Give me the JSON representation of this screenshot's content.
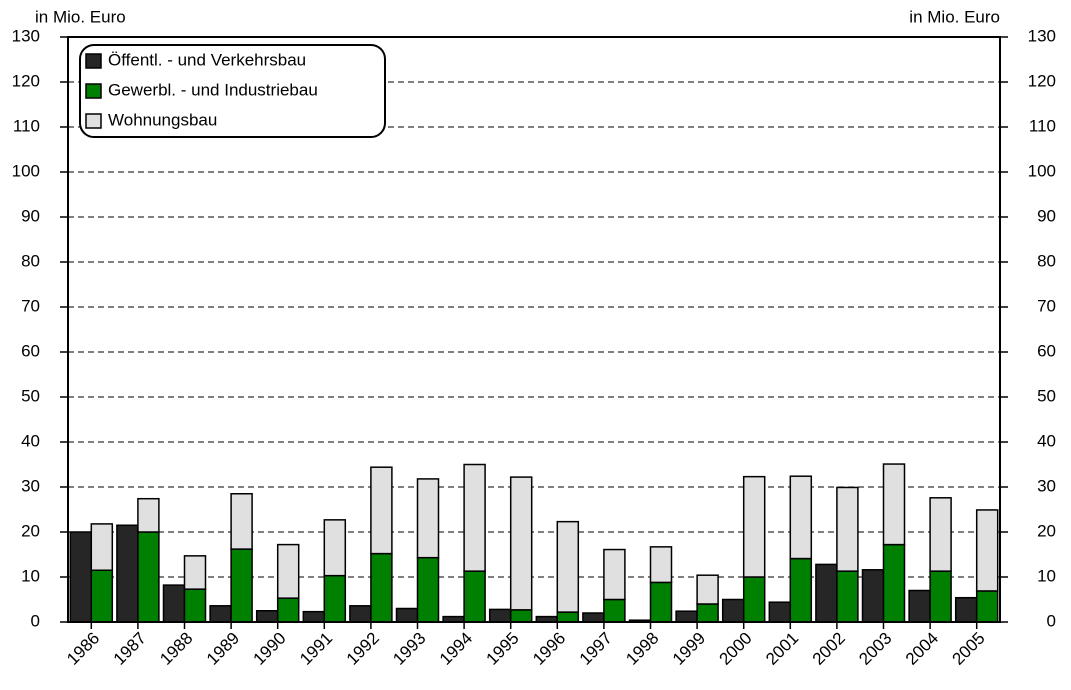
{
  "chart_data": {
    "type": "bar",
    "ylabel": "in Mio. Euro",
    "y2label": "in Mio. Euro",
    "categories": [
      "1986",
      "1987",
      "1988",
      "1989",
      "1990",
      "1991",
      "1992",
      "1993",
      "1994",
      "1995",
      "1996",
      "1997",
      "1998",
      "1999",
      "2000",
      "2001",
      "2002",
      "2003",
      "2004",
      "2005"
    ],
    "series": [
      {
        "name": "Öffentl. - und Verkehrsbau",
        "color": "#262626",
        "group": 0,
        "values": [
          20,
          21.5,
          8.2,
          3.6,
          2.5,
          2.3,
          3.6,
          3.0,
          1.2,
          2.8,
          1.2,
          2.0,
          0.4,
          2.4,
          5.0,
          4.4,
          12.8,
          11.6,
          7.0,
          5.4
        ]
      },
      {
        "name": "Gewerbl. - und Industriebau",
        "color": "#008000",
        "group": 1,
        "values": [
          11.5,
          20,
          7.3,
          16.2,
          5.3,
          10.3,
          15.2,
          14.3,
          11.3,
          2.7,
          2.2,
          5.0,
          8.8,
          4.0,
          10.0,
          14.1,
          11.3,
          17.2,
          11.3,
          6.9
        ]
      },
      {
        "name": "Wohnungsbau",
        "color": "#e0e0e0",
        "group": 1,
        "values": [
          10.3,
          7.4,
          7.4,
          12.3,
          11.9,
          12.4,
          19.2,
          17.5,
          23.7,
          29.5,
          20.1,
          11.1,
          7.9,
          6.4,
          22.3,
          18.3,
          18.6,
          17.9,
          16.3,
          18.0
        ]
      }
    ],
    "ylim": [
      0,
      130
    ],
    "yticks": [
      0,
      10,
      20,
      30,
      40,
      50,
      60,
      70,
      80,
      90,
      100,
      110,
      120,
      130
    ],
    "y2lim": [
      0,
      130
    ],
    "y2ticks": [
      0,
      10,
      20,
      30,
      40,
      50,
      60,
      70,
      80,
      90,
      100,
      110,
      120,
      130
    ],
    "grid": true,
    "legend": "upper-left"
  }
}
